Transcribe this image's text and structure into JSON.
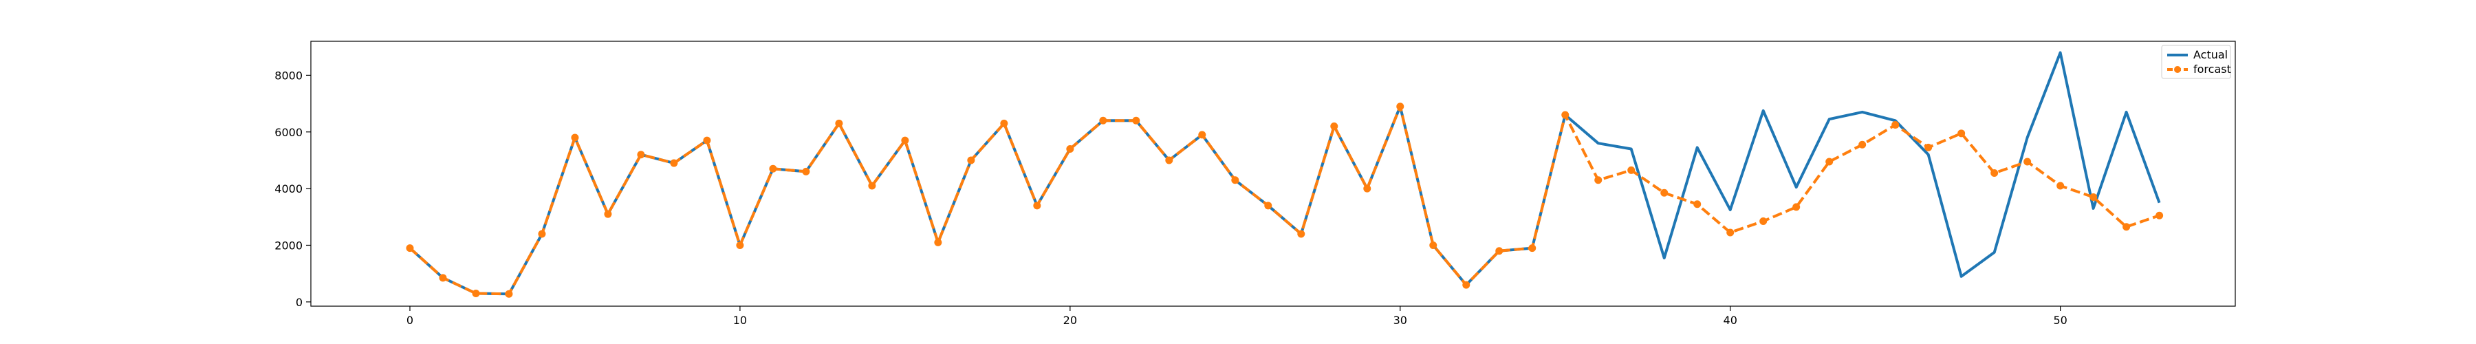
{
  "chart_data": {
    "type": "line",
    "title": "",
    "xlabel": "",
    "ylabel": "",
    "xlim": [
      -3,
      55.3
    ],
    "ylim": [
      -150,
      9200
    ],
    "x_ticks": [
      0,
      10,
      20,
      30,
      40,
      50
    ],
    "y_ticks": [
      0,
      2000,
      4000,
      6000,
      8000
    ],
    "grid": false,
    "legend_position": "top-right",
    "series": [
      {
        "name": "Actual",
        "color": "#1f77b4",
        "style": "solid",
        "marker": "none",
        "x": [
          0,
          1,
          2,
          3,
          4,
          5,
          6,
          7,
          8,
          9,
          10,
          11,
          12,
          13,
          14,
          15,
          16,
          17,
          18,
          19,
          20,
          21,
          22,
          23,
          24,
          25,
          26,
          27,
          28,
          29,
          30,
          31,
          32,
          33,
          34,
          35,
          36,
          37,
          38,
          39,
          40,
          41,
          42,
          43,
          44,
          45,
          46,
          47,
          48,
          49,
          50,
          51,
          52,
          53
        ],
        "values": [
          1900,
          850,
          300,
          280,
          2400,
          5800,
          3100,
          5200,
          4900,
          5700,
          2000,
          4700,
          4600,
          6300,
          4100,
          5700,
          2100,
          5000,
          6300,
          3400,
          5400,
          6400,
          6400,
          5000,
          5900,
          4300,
          3400,
          2400,
          6200,
          4000,
          6900,
          2000,
          600,
          1800,
          1900,
          6600,
          5600,
          5400,
          1550,
          5450,
          3250,
          6750,
          4050,
          6450,
          6700,
          6400,
          5200,
          900,
          1750,
          5800,
          8800,
          3300,
          6700,
          3500
        ]
      },
      {
        "name": "forcast",
        "color": "#ff7f0e",
        "style": "dashed",
        "marker": "circle",
        "x": [
          0,
          1,
          2,
          3,
          4,
          5,
          6,
          7,
          8,
          9,
          10,
          11,
          12,
          13,
          14,
          15,
          16,
          17,
          18,
          19,
          20,
          21,
          22,
          23,
          24,
          25,
          26,
          27,
          28,
          29,
          30,
          31,
          32,
          33,
          34,
          35,
          36,
          37,
          38,
          39,
          40,
          41,
          42,
          43,
          44,
          45,
          46,
          47,
          48,
          49,
          50,
          51,
          52,
          53
        ],
        "values": [
          1900,
          850,
          300,
          280,
          2400,
          5800,
          3100,
          5200,
          4900,
          5700,
          2000,
          4700,
          4600,
          6300,
          4100,
          5700,
          2100,
          5000,
          6300,
          3400,
          5400,
          6400,
          6400,
          5000,
          5900,
          4300,
          3400,
          2400,
          6200,
          4000,
          6900,
          2000,
          600,
          1800,
          1900,
          6600,
          4300,
          4650,
          3850,
          3450,
          2450,
          2850,
          3350,
          4950,
          5550,
          6250,
          5450,
          5950,
          4550,
          4950,
          4100,
          3700,
          2650,
          3050
        ]
      }
    ]
  }
}
